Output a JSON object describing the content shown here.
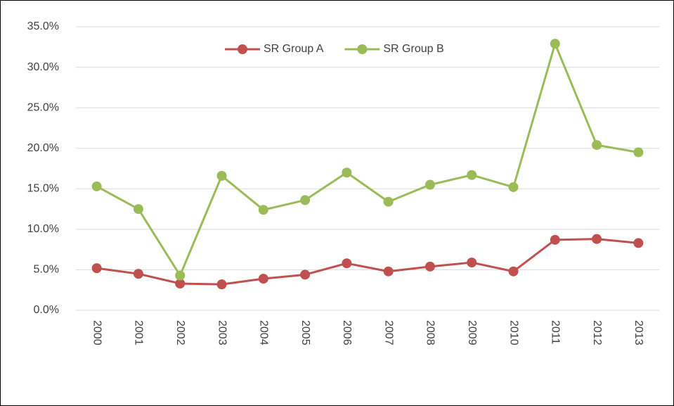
{
  "chart_data": {
    "type": "line",
    "categories": [
      "2000",
      "2001",
      "2002",
      "2003",
      "2004",
      "2005",
      "2006",
      "2007",
      "2008",
      "2009",
      "2010",
      "2011",
      "2012",
      "2013"
    ],
    "series": [
      {
        "name": "SR Group A",
        "color": "#c0504d",
        "values": [
          5.2,
          4.5,
          3.3,
          3.2,
          3.9,
          4.4,
          5.8,
          4.8,
          5.4,
          5.9,
          4.8,
          8.7,
          8.8,
          8.3
        ]
      },
      {
        "name": "SR Group B",
        "color": "#9bbb59",
        "values": [
          15.3,
          12.5,
          4.3,
          16.6,
          12.4,
          13.6,
          17.0,
          13.4,
          15.5,
          16.7,
          15.2,
          32.9,
          20.4,
          19.5
        ]
      }
    ],
    "ylim": [
      0,
      35
    ],
    "yticks": [
      {
        "value": 0,
        "label": "0.0%"
      },
      {
        "value": 5,
        "label": "5.0%"
      },
      {
        "value": 10,
        "label": "10.0%"
      },
      {
        "value": 15,
        "label": "15.0%"
      },
      {
        "value": 20,
        "label": "20.0%"
      },
      {
        "value": 25,
        "label": "25.0%"
      },
      {
        "value": 30,
        "label": "30.0%"
      },
      {
        "value": 35,
        "label": "35.0%"
      }
    ],
    "grid": true,
    "legend": "top"
  }
}
